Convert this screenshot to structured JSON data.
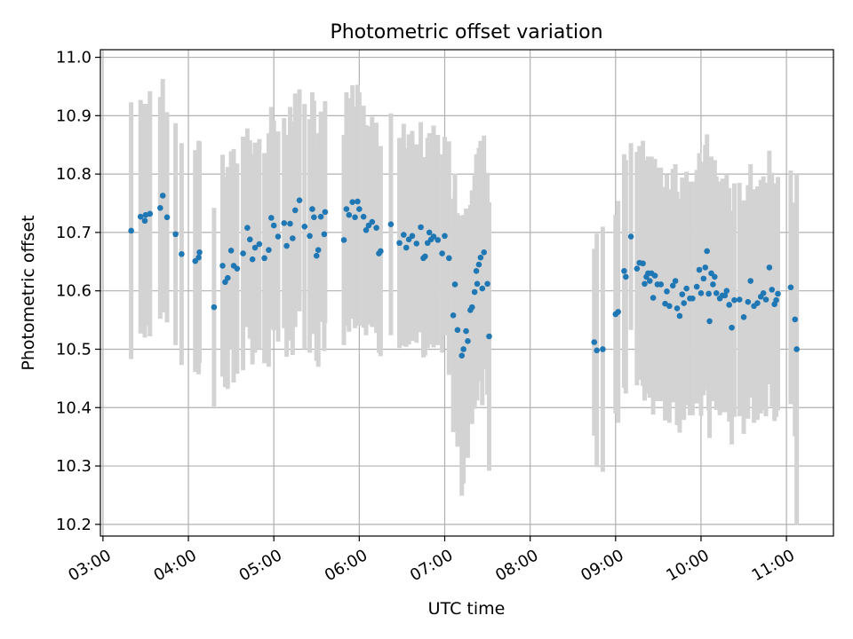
{
  "chart_data": {
    "type": "scatter",
    "title": "Photometric offset variation",
    "xlabel": "UTC time",
    "ylabel": "Photometric offset",
    "x_unit": "hours UTC",
    "xlim": [
      2.97,
      11.55
    ],
    "ylim": [
      10.18,
      11.013
    ],
    "grid": true,
    "x_tick_values": [
      3,
      4,
      5,
      6,
      7,
      8,
      9,
      10,
      11
    ],
    "x_tick_labels": [
      "03:00",
      "04:00",
      "05:00",
      "06:00",
      "07:00",
      "08:00",
      "09:00",
      "10:00",
      "11:00"
    ],
    "y_tick_values": [
      10.2,
      10.3,
      10.4,
      10.5,
      10.6,
      10.7,
      10.8,
      10.9,
      11.0
    ],
    "y_tick_labels": [
      "10.2",
      "10.3",
      "10.4",
      "10.5",
      "10.6",
      "10.7",
      "10.8",
      "10.9",
      "11.0"
    ],
    "point_color": "#1f77b4",
    "errorbar_color": "#d3d3d3",
    "series": [
      {
        "points": [
          [
            3.33,
            10.703,
            0.22
          ],
          [
            3.44,
            10.727,
            0.2
          ],
          [
            3.49,
            10.72,
            0.2
          ],
          [
            3.5,
            10.73,
            0.19
          ],
          [
            3.55,
            10.732,
            0.21
          ],
          [
            3.67,
            10.742,
            0.19
          ],
          [
            3.7,
            10.763,
            0.2
          ],
          [
            3.75,
            10.726,
            0.18
          ],
          [
            3.85,
            10.697,
            0.19
          ],
          [
            3.92,
            10.663,
            0.19
          ],
          [
            4.08,
            10.651,
            0.19
          ],
          [
            4.12,
            10.657,
            0.2
          ],
          [
            4.13,
            10.666,
            0.19
          ],
          [
            4.3,
            10.572,
            0.17
          ],
          [
            4.4,
            10.643,
            0.19
          ],
          [
            4.43,
            10.615,
            0.18
          ],
          [
            4.46,
            10.622,
            0.19
          ],
          [
            4.5,
            10.669,
            0.17
          ],
          [
            4.53,
            10.643,
            0.2
          ],
          [
            4.57,
            10.638,
            0.18
          ],
          [
            4.64,
            10.664,
            0.2
          ],
          [
            4.69,
            10.708,
            0.17
          ],
          [
            4.72,
            10.688,
            0.17
          ],
          [
            4.75,
            10.654,
            0.18
          ],
          [
            4.78,
            10.674,
            0.18
          ],
          [
            4.83,
            10.68,
            0.18
          ],
          [
            4.89,
            10.656,
            0.18
          ],
          [
            4.94,
            10.67,
            0.2
          ],
          [
            4.97,
            10.725,
            0.19
          ],
          [
            5.0,
            10.712,
            0.18
          ],
          [
            5.05,
            10.693,
            0.18
          ],
          [
            5.12,
            10.716,
            0.18
          ],
          [
            5.15,
            10.677,
            0.19
          ],
          [
            5.19,
            10.715,
            0.2
          ],
          [
            5.22,
            10.69,
            0.2
          ],
          [
            5.25,
            10.738,
            0.2
          ],
          [
            5.3,
            10.755,
            0.19
          ],
          [
            5.36,
            10.71,
            0.21
          ],
          [
            5.42,
            10.694,
            0.2
          ],
          [
            5.45,
            10.74,
            0.2
          ],
          [
            5.47,
            10.726,
            0.2
          ],
          [
            5.5,
            10.66,
            0.18
          ],
          [
            5.52,
            10.67,
            0.2
          ],
          [
            5.55,
            10.727,
            0.18
          ],
          [
            5.59,
            10.697,
            0.2
          ],
          [
            5.6,
            10.735,
            0.19
          ],
          [
            5.82,
            10.687,
            0.18
          ],
          [
            5.85,
            10.74,
            0.2
          ],
          [
            5.88,
            10.73,
            0.2
          ],
          [
            5.92,
            10.752,
            0.2
          ],
          [
            5.95,
            10.726,
            0.19
          ],
          [
            5.98,
            10.753,
            0.2
          ],
          [
            6.0,
            10.74,
            0.2
          ],
          [
            6.05,
            10.727,
            0.19
          ],
          [
            6.08,
            10.704,
            0.18
          ],
          [
            6.11,
            10.712,
            0.17
          ],
          [
            6.15,
            10.718,
            0.18
          ],
          [
            6.2,
            10.708,
            0.18
          ],
          [
            6.23,
            10.664,
            0.17
          ],
          [
            6.25,
            10.668,
            0.18
          ],
          [
            6.37,
            10.714,
            0.19
          ],
          [
            6.47,
            10.682,
            0.18
          ],
          [
            6.52,
            10.696,
            0.19
          ],
          [
            6.55,
            10.674,
            0.17
          ],
          [
            6.58,
            10.688,
            0.18
          ],
          [
            6.62,
            10.694,
            0.18
          ],
          [
            6.67,
            10.681,
            0.17
          ],
          [
            6.72,
            10.709,
            0.18
          ],
          [
            6.75,
            10.656,
            0.17
          ],
          [
            6.77,
            10.659,
            0.17
          ],
          [
            6.8,
            10.682,
            0.18
          ],
          [
            6.82,
            10.7,
            0.17
          ],
          [
            6.84,
            10.688,
            0.18
          ],
          [
            6.87,
            10.693,
            0.19
          ],
          [
            6.92,
            10.687,
            0.18
          ],
          [
            6.97,
            10.664,
            0.17
          ],
          [
            7.0,
            10.694,
            0.17
          ],
          [
            7.05,
            10.656,
            0.2
          ],
          [
            7.1,
            10.558,
            0.2
          ],
          [
            7.12,
            10.611,
            0.19
          ],
          [
            7.15,
            10.533,
            0.2
          ],
          [
            7.2,
            10.489,
            0.24
          ],
          [
            7.22,
            10.5,
            0.23
          ],
          [
            7.25,
            10.531,
            0.21
          ],
          [
            7.27,
            10.514,
            0.2
          ],
          [
            7.3,
            10.567,
            0.18
          ],
          [
            7.32,
            10.572,
            0.2
          ],
          [
            7.35,
            10.598,
            0.2
          ],
          [
            7.37,
            10.634,
            0.2
          ],
          [
            7.38,
            10.612,
            0.2
          ],
          [
            7.4,
            10.645,
            0.2
          ],
          [
            7.42,
            10.657,
            0.2
          ],
          [
            7.44,
            10.604,
            0.2
          ],
          [
            7.46,
            10.666,
            0.2
          ],
          [
            7.5,
            10.612,
            0.19
          ],
          [
            7.52,
            10.522,
            0.23
          ],
          [
            8.75,
            10.512,
            0.16
          ],
          [
            8.78,
            10.498,
            0.2
          ],
          [
            8.85,
            10.5,
            0.21
          ],
          [
            9.0,
            10.56,
            0.17
          ],
          [
            9.03,
            10.564,
            0.19
          ],
          [
            9.1,
            10.634,
            0.2
          ],
          [
            9.12,
            10.624,
            0.2
          ],
          [
            9.18,
            10.693,
            0.16
          ],
          [
            9.25,
            10.638,
            0.2
          ],
          [
            9.28,
            10.648,
            0.2
          ],
          [
            9.32,
            10.647,
            0.21
          ],
          [
            9.34,
            10.612,
            0.2
          ],
          [
            9.36,
            10.624,
            0.2
          ],
          [
            9.38,
            10.63,
            0.2
          ],
          [
            9.4,
            10.617,
            0.2
          ],
          [
            9.42,
            10.63,
            0.2
          ],
          [
            9.44,
            10.588,
            0.2
          ],
          [
            9.46,
            10.626,
            0.2
          ],
          [
            9.49,
            10.611,
            0.2
          ],
          [
            9.53,
            10.611,
            0.2
          ],
          [
            9.58,
            10.578,
            0.2
          ],
          [
            9.6,
            10.599,
            0.2
          ],
          [
            9.63,
            10.574,
            0.2
          ],
          [
            9.67,
            10.609,
            0.2
          ],
          [
            9.7,
            10.617,
            0.2
          ],
          [
            9.72,
            10.57,
            0.2
          ],
          [
            9.75,
            10.557,
            0.2
          ],
          [
            9.78,
            10.594,
            0.2
          ],
          [
            9.8,
            10.579,
            0.2
          ],
          [
            9.83,
            10.604,
            0.2
          ],
          [
            9.87,
            10.587,
            0.2
          ],
          [
            9.9,
            10.587,
            0.2
          ],
          [
            9.95,
            10.607,
            0.2
          ],
          [
            9.98,
            10.636,
            0.2
          ],
          [
            10.0,
            10.596,
            0.21
          ],
          [
            10.03,
            10.621,
            0.2
          ],
          [
            10.05,
            10.64,
            0.21
          ],
          [
            10.07,
            10.668,
            0.2
          ],
          [
            10.09,
            10.595,
            0.2
          ],
          [
            10.1,
            10.548,
            0.2
          ],
          [
            10.12,
            10.63,
            0.2
          ],
          [
            10.14,
            10.611,
            0.2
          ],
          [
            10.16,
            10.624,
            0.2
          ],
          [
            10.18,
            10.596,
            0.2
          ],
          [
            10.22,
            10.587,
            0.2
          ],
          [
            10.25,
            10.592,
            0.2
          ],
          [
            10.28,
            10.592,
            0.2
          ],
          [
            10.3,
            10.6,
            0.2
          ],
          [
            10.33,
            10.576,
            0.2
          ],
          [
            10.36,
            10.537,
            0.2
          ],
          [
            10.39,
            10.584,
            0.2
          ],
          [
            10.45,
            10.585,
            0.2
          ],
          [
            10.5,
            10.555,
            0.2
          ],
          [
            10.55,
            10.581,
            0.2
          ],
          [
            10.58,
            10.617,
            0.2
          ],
          [
            10.62,
            10.574,
            0.2
          ],
          [
            10.66,
            10.579,
            0.2
          ],
          [
            10.7,
            10.59,
            0.2
          ],
          [
            10.73,
            10.596,
            0.2
          ],
          [
            10.76,
            10.585,
            0.2
          ],
          [
            10.8,
            10.64,
            0.2
          ],
          [
            10.83,
            10.602,
            0.2
          ],
          [
            10.86,
            10.577,
            0.2
          ],
          [
            10.88,
            10.584,
            0.2
          ],
          [
            10.9,
            10.595,
            0.2
          ],
          [
            11.05,
            10.606,
            0.2
          ],
          [
            11.1,
            10.551,
            0.2
          ],
          [
            11.12,
            10.5,
            0.3
          ]
        ]
      }
    ]
  }
}
